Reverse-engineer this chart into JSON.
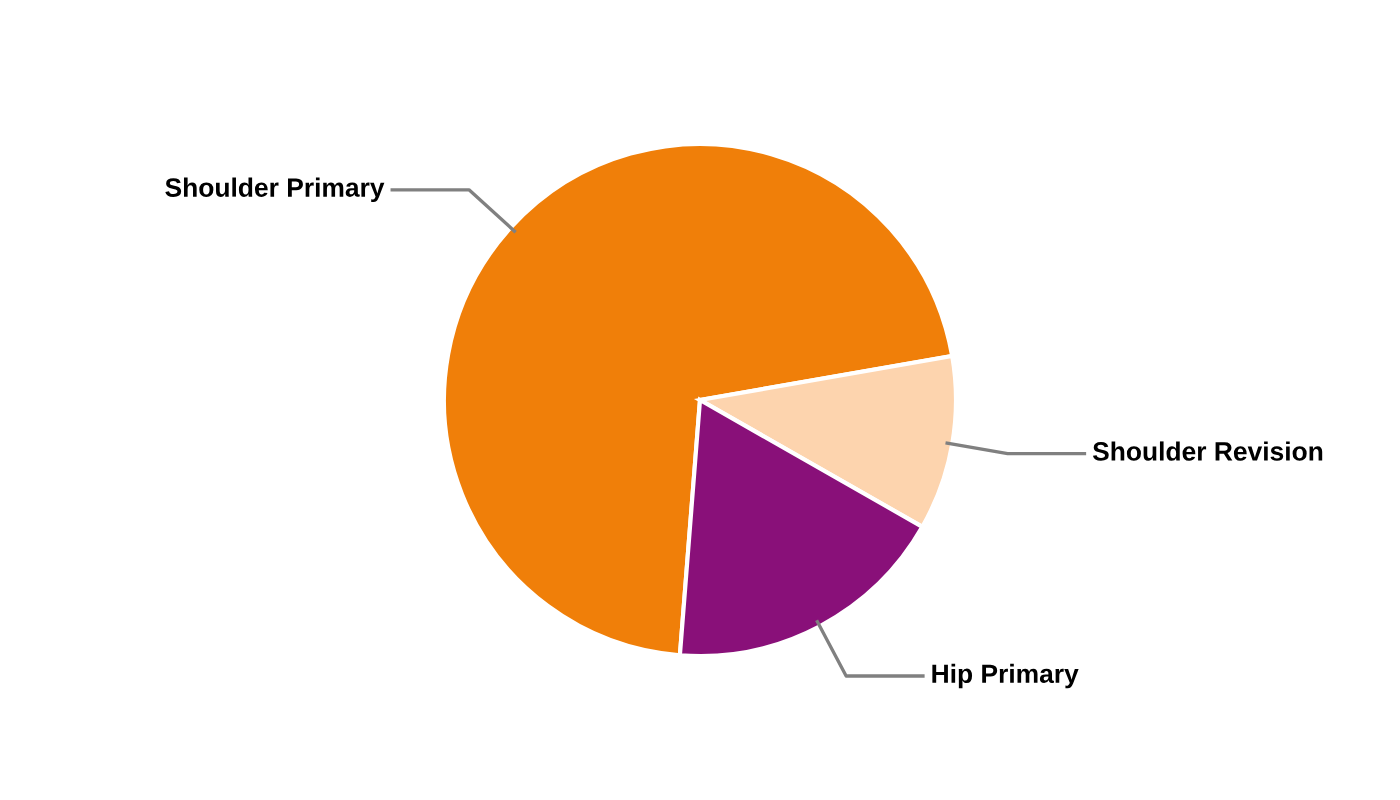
{
  "chart_data": {
    "type": "pie",
    "categories": [
      "Shoulder Primary",
      "Shoulder Revision",
      "Hip Primary"
    ],
    "values": [
      71,
      11,
      18
    ],
    "colors": [
      "#f07f09",
      "#fdd4ae",
      "#891079"
    ],
    "legend": false
  }
}
